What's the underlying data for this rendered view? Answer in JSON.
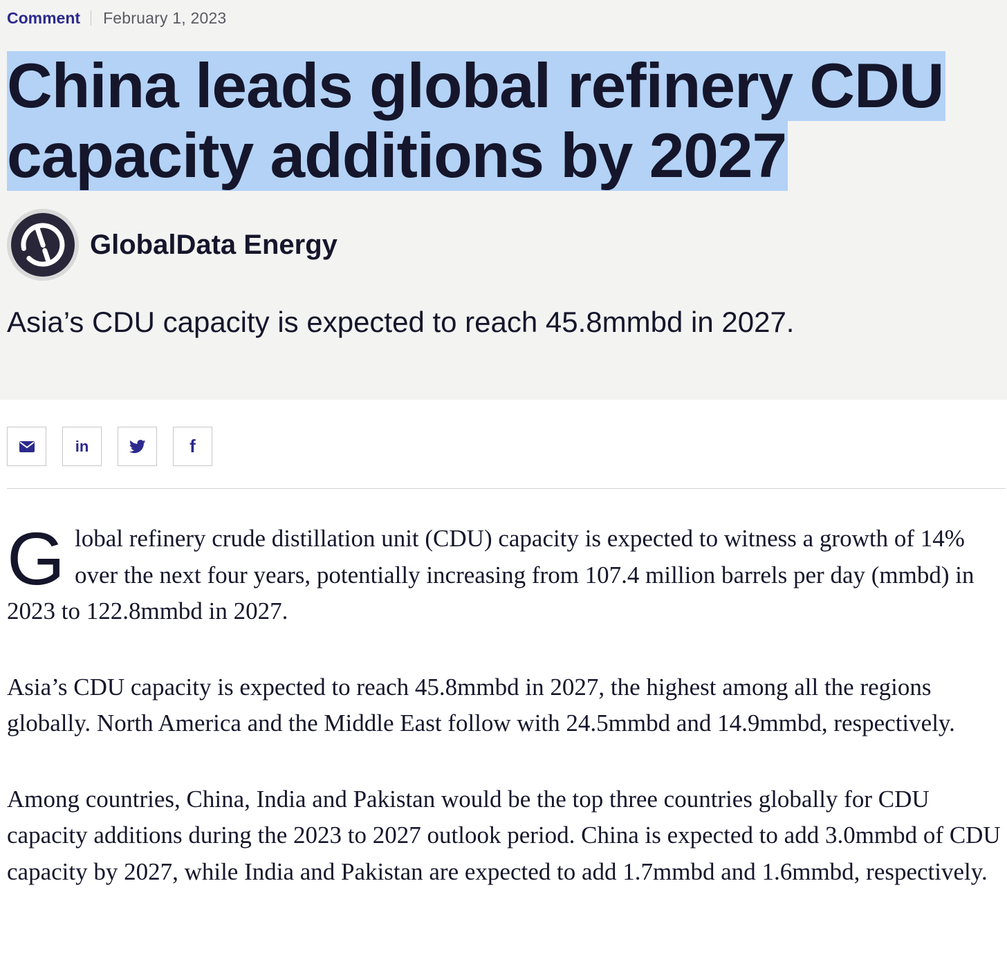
{
  "article": {
    "category": "Comment",
    "date": "February 1, 2023",
    "headline": "China leads global refinery CDU capacity additions by 2027",
    "author": "GlobalData Energy",
    "standfirst": "Asia’s CDU capacity is expected to reach 45.8mmbd in 2027."
  },
  "share": {
    "email_icon": "envelope-icon",
    "linkedin_label": "in",
    "twitter_icon": "twitter-bird-icon",
    "facebook_label": "f"
  },
  "body": {
    "dropcap": "G",
    "p1_rest": "lobal refinery crude distillation unit (CDU) capacity is expected to witness a growth of 14% over the next four years, potentially increasing from 107.4 million barrels per day (mmbd) in 2023 to 122.8mmbd in 2027.",
    "p2": "Asia’s CDU capacity is expected to reach 45.8mmbd in 2027, the highest among all the regions globally. North America and the Middle East follow with 24.5mmbd and 14.9mmbd, respectively.",
    "p3": "Among countries, China, India and Pakistan would be the top three countries globally for CDU capacity additions during the 2023 to 2027 outlook period. China is expected to add 3.0mmbd of CDU capacity by 2027, while India and Pakistan are expected to add 1.7mmbd and 1.6mmbd, respectively."
  },
  "colors": {
    "accent": "#2c2a8d",
    "header_bg": "#f3f3f2",
    "selection": "#b3d2f6",
    "text": "#15162b"
  }
}
